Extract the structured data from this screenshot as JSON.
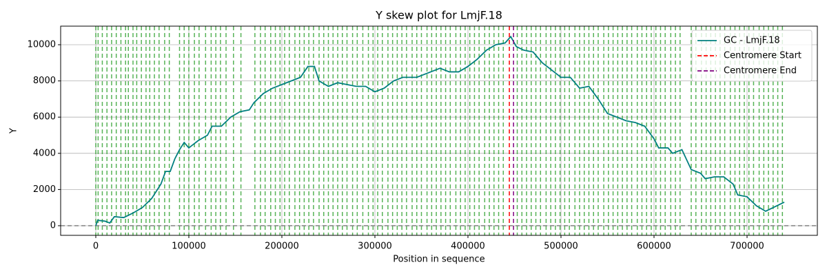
{
  "chart_data": {
    "type": "line",
    "title": "Y skew plot for LmjF.18",
    "xlabel": "Position in sequence",
    "ylabel": "Y",
    "xlim": [
      -37778,
      775556
    ],
    "ylim": [
      -532,
      11027
    ],
    "xticks": [
      0,
      100000,
      200000,
      300000,
      400000,
      500000,
      600000,
      700000
    ],
    "yticks": [
      0,
      2000,
      4000,
      6000,
      8000,
      10000
    ],
    "grid": true,
    "legend": "upper right",
    "hline": {
      "y": 0,
      "color": "#808080"
    },
    "series": [
      {
        "name": "GC - LmjF.18",
        "color": "#007f7f",
        "x": [
          0,
          2000,
          10000,
          15000,
          20000,
          30000,
          40000,
          50000,
          60000,
          70000,
          75000,
          80000,
          85000,
          90000,
          95000,
          100000,
          110000,
          120000,
          125000,
          135000,
          145000,
          155000,
          165000,
          170000,
          180000,
          190000,
          200000,
          210000,
          220000,
          228000,
          235000,
          240000,
          250000,
          260000,
          270000,
          280000,
          290000,
          300000,
          310000,
          320000,
          330000,
          345000,
          360000,
          370000,
          380000,
          390000,
          400000,
          410000,
          420000,
          430000,
          440000,
          446000,
          452000,
          460000,
          470000,
          480000,
          490000,
          500000,
          510000,
          520000,
          530000,
          540000,
          550000,
          560000,
          570000,
          580000,
          590000,
          600000,
          605000,
          615000,
          620000,
          630000,
          640000,
          650000,
          655000,
          665000,
          675000,
          685000,
          690000,
          700000,
          710000,
          720000,
          728000,
          740000
        ],
        "values": [
          0,
          300,
          250,
          150,
          500,
          450,
          700,
          1000,
          1500,
          2300,
          3000,
          3000,
          3700,
          4200,
          4600,
          4300,
          4700,
          5000,
          5500,
          5500,
          6000,
          6300,
          6400,
          6800,
          7300,
          7600,
          7800,
          8000,
          8200,
          8800,
          8800,
          8000,
          7700,
          7900,
          7800,
          7700,
          7700,
          7400,
          7600,
          8000,
          8200,
          8200,
          8500,
          8700,
          8500,
          8500,
          8800,
          9200,
          9700,
          10000,
          10100,
          10450,
          9900,
          9700,
          9600,
          9000,
          8600,
          8200,
          8200,
          7600,
          7700,
          7000,
          6200,
          6000,
          5800,
          5700,
          5500,
          4800,
          4300,
          4300,
          4000,
          4200,
          3100,
          2900,
          2600,
          2700,
          2700,
          2300,
          1700,
          1600,
          1100,
          800,
          1000,
          1300
        ]
      }
    ],
    "markers": [
      {
        "name": "Centromere Start",
        "color": "#ff0000",
        "x": 444500
      },
      {
        "name": "Centromere End",
        "color": "#800080",
        "x": 449000
      }
    ],
    "boundaries": {
      "color": "#2ca02c",
      "x": [
        0,
        2500,
        7000,
        12000,
        17000,
        22000,
        27000,
        32000,
        35000,
        40000,
        44000,
        49000,
        54000,
        58000,
        63000,
        68000,
        74000,
        79000,
        90000,
        95000,
        100000,
        106000,
        111000,
        118000,
        124000,
        129000,
        134000,
        140000,
        148000,
        156000,
        171000,
        177000,
        182000,
        188000,
        193000,
        198000,
        203000,
        208000,
        214000,
        219000,
        224000,
        229000,
        234000,
        240000,
        245000,
        250000,
        255000,
        260000,
        265000,
        270000,
        276000,
        281000,
        287000,
        293000,
        298000,
        303000,
        308000,
        314000,
        319000,
        324000,
        329000,
        334000,
        340000,
        345000,
        350000,
        356000,
        361000,
        366000,
        371000,
        376000,
        381000,
        387000,
        392000,
        397000,
        402000,
        407000,
        412000,
        418000,
        423000,
        428000,
        433000,
        438000,
        453000,
        458000,
        463000,
        468000,
        473000,
        478000,
        484000,
        489000,
        494000,
        499000,
        504000,
        509000,
        515000,
        520000,
        525000,
        530000,
        535000,
        540000,
        546000,
        551000,
        556000,
        561000,
        566000,
        571000,
        576000,
        582000,
        587000,
        592000,
        597000,
        602000,
        607000,
        612000,
        618000,
        623000,
        628000,
        640000,
        645000,
        651000,
        656000,
        661000,
        666000,
        671000,
        676000,
        682000,
        687000,
        692000,
        697000,
        702000,
        707000,
        713000,
        718000,
        723000,
        728000,
        733000,
        738000
      ]
    }
  }
}
